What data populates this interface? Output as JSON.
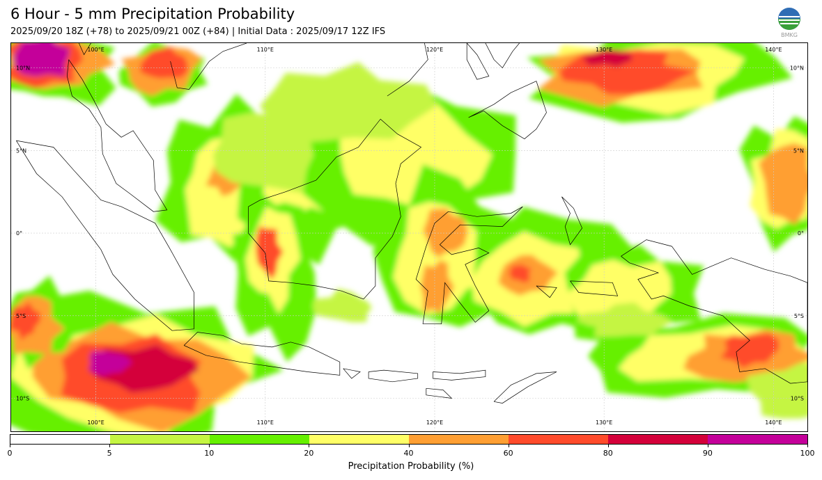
{
  "header": {
    "title": "6 Hour - 5 mm Precipitation Probability",
    "subtitle": "2025/09/20 18Z (+78) to 2025/09/21 00Z (+84) | Initial Data : 2025/09/17 12Z IFS",
    "logo_text": "BMKG"
  },
  "map": {
    "lon_range": [
      95,
      142
    ],
    "lat_range": [
      -12,
      11.5
    ],
    "lon_ticks": [
      "100°E",
      "110°E",
      "120°E",
      "130°E",
      "140°E"
    ],
    "lat_ticks": [
      "10°N",
      "5°N",
      "0°",
      "5°S",
      "10°S"
    ],
    "grid": true,
    "ocean_color": "#ffffff",
    "coastline_color": "#000000"
  },
  "legend": {
    "title": "Precipitation Probability (%)",
    "tick_labels": [
      "0",
      "5",
      "10",
      "20",
      "40",
      "60",
      "80",
      "90",
      "100"
    ],
    "colors": [
      "#ffffff",
      "#c5f542",
      "#66f000",
      "#ffff66",
      "#ff9f33",
      "#ff4b2b",
      "#d4003a",
      "#c4009a"
    ]
  }
}
